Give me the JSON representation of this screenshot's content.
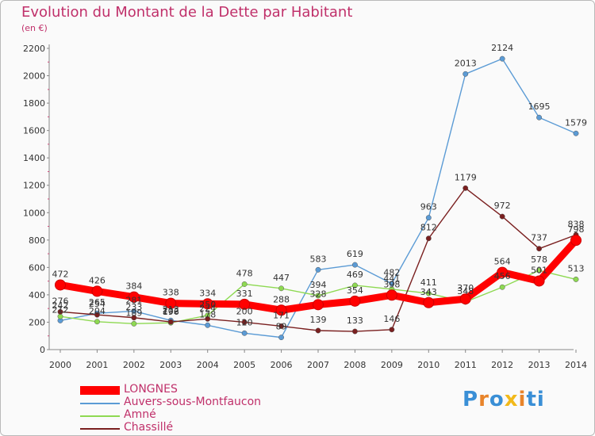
{
  "title": "Evolution du Montant de la Dette par Habitant",
  "subtitle": "(en €)",
  "logo": "Proxiti",
  "logo_letters": [
    "P",
    "r",
    "o",
    "x",
    "i",
    "ti"
  ],
  "chart_data": {
    "type": "line",
    "title": "Evolution du Montant de la Dette par Habitant",
    "subtitle": "(en €)",
    "x": [
      "2000",
      "2001",
      "2002",
      "2003",
      "2004",
      "2005",
      "2006",
      "2007",
      "2008",
      "2009",
      "2010",
      "2011",
      "2012",
      "2013",
      "2014"
    ],
    "ylim": [
      0,
      2200
    ],
    "yticks": [
      0,
      200,
      400,
      600,
      800,
      1000,
      1200,
      1400,
      1600,
      1800,
      2000,
      2200
    ],
    "grid": false,
    "legend": "bottom-left",
    "series": [
      {
        "name": "LONGNES",
        "color": "#ff0000",
        "values": [
          472,
          426,
          384,
          338,
          334,
          331,
          288,
          328,
          354,
          398,
          343,
          370,
          564,
          501,
          798
        ]
      },
      {
        "name": "Auvers-sous-Montfaucon",
        "color": "#5b9bd5",
        "values": [
          212,
          265,
          281,
          213,
          178,
          120,
          89,
          583,
          619,
          482,
          963,
          2013,
          2124,
          1695,
          1579
        ]
      },
      {
        "name": "Amné",
        "color": "#8ed952",
        "values": [
          242,
          204,
          189,
          196,
          250,
          478,
          447,
          394,
          469,
          441,
          411,
          348,
          456,
          578,
          513
        ]
      },
      {
        "name": "Chassillé",
        "color": "#7a1f1f",
        "values": [
          276,
          254,
          233,
          202,
          224,
          200,
          171,
          139,
          133,
          146,
          812,
          1179,
          972,
          737,
          838
        ]
      }
    ]
  }
}
